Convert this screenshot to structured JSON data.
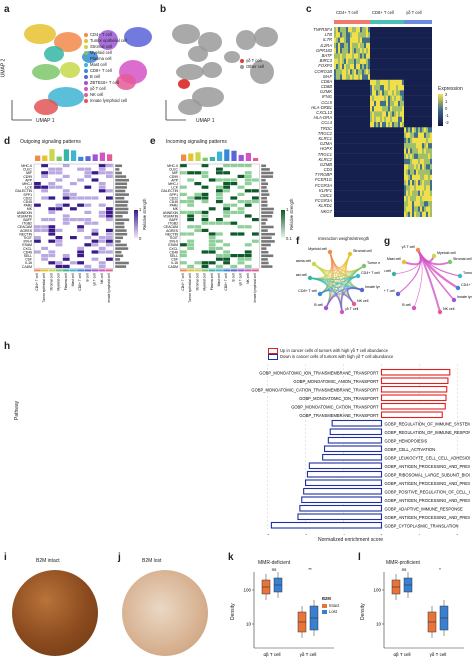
{
  "panels": {
    "a": {
      "label": "a",
      "xaxis": "UMAP 1",
      "yaxis": "UMAP 2",
      "legend": [
        {
          "name": "CD4+ T cell",
          "color": "#f28a4a"
        },
        {
          "name": "Tumor epithelial cell",
          "color": "#e8c22e"
        },
        {
          "name": "Stromal cell",
          "color": "#c7d84a"
        },
        {
          "name": "Myeloid cell",
          "color": "#7cc66a"
        },
        {
          "name": "Plasma cell",
          "color": "#35b6a4"
        },
        {
          "name": "Mast cell",
          "color": "#3db5d4"
        },
        {
          "name": "CD8+ T cell",
          "color": "#3a86d8"
        },
        {
          "name": "B cell",
          "color": "#5b63d8"
        },
        {
          "name": "ZBTB16+ T cell",
          "color": "#9a57d6"
        },
        {
          "name": "γδ T cell",
          "color": "#d454c4"
        },
        {
          "name": "NK cell",
          "color": "#e45b96"
        },
        {
          "name": "Innate lymphoid cell",
          "color": "#e25555"
        }
      ]
    },
    "b": {
      "label": "b",
      "xaxis": "UMAP 1",
      "legend": [
        {
          "name": "γδ T cell",
          "color": "#e03b3b"
        },
        {
          "name": "Other cell",
          "color": "#9a9a9a"
        }
      ]
    },
    "c": {
      "label": "c",
      "groups": [
        "CD4+ T cell",
        "CD8+ T cell",
        "γδ T cell"
      ],
      "group_colors": [
        "#f07a6a",
        "#4bbfb4",
        "#6a8be0"
      ],
      "genes": [
        "TNFRSF4",
        "LTB",
        "IL7R",
        "IL2RA",
        "GPR183",
        "BATF",
        "BIRC3",
        "FOXP3",
        "CORO1B",
        "MAF",
        "CD8A",
        "CD8B",
        "GZMK",
        "IFNG",
        "CCL5",
        "HLA-DRB1",
        "CXCL13",
        "HLA-DRA",
        "CCL4",
        "TRDC",
        "TRGC2",
        "KLRC1",
        "GZMA",
        "HOPX",
        "TRGC1",
        "KLRC2",
        "GZMB",
        "CD3",
        "TYROBP",
        "FCER1G",
        "FCGR3A",
        "KLRF1",
        "CMC1",
        "FCGR3A",
        "KLRD1",
        "NKG7"
      ],
      "colorbar_title": "Expression",
      "colorbar_ticks": [
        "2",
        "1",
        "0",
        "-1",
        "-2"
      ]
    },
    "d": {
      "label": "d",
      "title": "Outgoing signaling patterns",
      "rows": [
        "MHC-II",
        "CLEC",
        "MIF",
        "CD99",
        "APP",
        "MHC-I",
        "LCK",
        "GALECTIN",
        "SPP1",
        "CD22",
        "CD45",
        "PARs",
        "MK",
        "ANNEXIN",
        "VISFATIN",
        "BAFF",
        "ITGB2",
        "CEACAM",
        "AGRES",
        "NECTIN",
        "TIGIT",
        "IFN-II",
        "ESAM",
        "CXCL",
        "CD46",
        "SELL",
        "CSF",
        "IL16",
        "CADM"
      ],
      "cols": [
        "CD4+ T cell",
        "Tumor epithelial cell",
        "Stromal cell",
        "Myeloid cell",
        "Plasma cell",
        "Mast cell",
        "CD8+ T cell",
        "B cell",
        "γδ T cell",
        "NK cell",
        "Innate lymphoid cell"
      ],
      "colorbar_title": "Relative strength",
      "colorbar_ticks": [
        "1",
        "0"
      ]
    },
    "e": {
      "label": "e",
      "title": "Incoming signaling patterns",
      "rows": [
        "MHC-II",
        "CLEC",
        "MIF",
        "CD99",
        "APP",
        "MHC-I",
        "LCK",
        "GALECTIN",
        "SPP1",
        "CD22",
        "CD45",
        "PARs",
        "MK",
        "ANNEXIN",
        "VISFATIN",
        "BAFF",
        "ITGB2",
        "CEACAM",
        "AGRES",
        "NECTIN",
        "TIGIT",
        "IFN-II",
        "ESAM",
        "CXCL",
        "CD46",
        "SELL",
        "CSF",
        "IL16",
        "CADM"
      ],
      "cols": [
        "CD4+ T cell",
        "Tumor epithelial cell",
        "Stromal cell",
        "Myeloid cell",
        "Plasma cell",
        "Mast cell",
        "CD8+ T cell",
        "B cell",
        "γδ T cell",
        "NK cell",
        "Innate lymphoid cell"
      ],
      "colorbar_title": "Relative strength",
      "colorbar_ticks": [
        "1",
        "0.1"
      ]
    },
    "f": {
      "label": "f",
      "title": "Interaction weights/strength",
      "nodes": [
        "Myeloid cell",
        "Stromal cell",
        "Plasma cell",
        "Tumor epithelial cell",
        "Mast cell",
        "CD4+ T cell",
        "CD8+ T cell",
        "Innate lymphoid cell",
        "B cell",
        "γδ T cell",
        "NK cell"
      ]
    },
    "g": {
      "label": "g",
      "nodes": [
        "γδ T cell",
        "Mast cell",
        "Myeloid cell",
        "Stromal cell",
        "Plasma cell",
        "Tumor epithelial cell",
        "CD4+ T cell",
        "CD8+ T cell",
        "Innate lymphoid cell",
        "B cell",
        "NK cell"
      ]
    },
    "h": {
      "label": "h",
      "ylabel": "Pathway",
      "xlabel": "Normalized enrichment score",
      "legend": [
        {
          "name": "Up in cancer cells of tumors with high γδ T cell abundance",
          "color": "#e02020"
        },
        {
          "name": "Down in cancer cells of tumors with high γδ T cell abundance",
          "color": "#2030a0"
        }
      ],
      "xticks": [
        "-3",
        "-2",
        "-1",
        "0",
        "1",
        "2"
      ]
    },
    "i": {
      "label": "i",
      "title": "B2M intact"
    },
    "j": {
      "label": "j",
      "title": "B2M lost"
    },
    "k": {
      "label": "k",
      "title": "MMR-deficient",
      "ylabel": "Density",
      "legend_title": "B2M",
      "legend": [
        {
          "name": "Intact",
          "color": "#e8743a"
        },
        {
          "name": "Lost",
          "color": "#3a7fd0"
        }
      ],
      "sig": [
        "ns",
        "**"
      ],
      "yticks": [
        "100",
        "10"
      ],
      "xcats": [
        "αβ T cell",
        "γδ T cell"
      ]
    },
    "l": {
      "label": "l",
      "title": "MMR-proficient",
      "ylabel": "Density",
      "sig": [
        "ns",
        "*"
      ],
      "yticks": [
        "100",
        "10"
      ],
      "xcats": [
        "αβ T cell",
        "γδ T cell"
      ]
    }
  },
  "chart_data": [
    {
      "type": "bar",
      "title": "",
      "xlabel": "Normalized enrichment score",
      "ylabel": "Pathway",
      "xlim": [
        -3.2,
        2.2
      ],
      "categories": [
        "GOBP_MONOATOMIC_ION_TRANSMEMBRANE_TRANSPORT",
        "GOBP_MONOATOMIC_ANION_TRANSPORT",
        "GOBP_MONOATOMIC_CATION_TRANSMEMBRANE_TRANSPORT",
        "GOBP_MONOATOMIC_ION_TRANSPORT",
        "GOBP_MONOATOMIC_CATION_TRANSPORT",
        "GOBP_TRANSMEMBRANE_TRANSPORT",
        "GOBP_REGULATION_OF_IMMUNE_SYSTEM_PROCESS",
        "GOBP_REGULATION_OF_IMMUNE_RESPONSE",
        "GOBP_HEMOPOIESIS",
        "GOBP_CELL_ACTIVATION",
        "GOBP_LEUKOCYTE_CELL_CELL_ADHESION",
        "GOBP_ANTIGEN_PROCESSING_AND_PRESENTATION_OF_EXOGENOUS_PEPTIDE_ANTIGEN",
        "GOBP_RIBOSOMAL_LARGE_SUBUNIT_BIOGENESIS",
        "GOBP_ANTIGEN_PROCESSING_AND_PRESENTATION_OF_ENDOGENOUS_ANTIGEN",
        "GOBP_POSITIVE_REGULATION_OF_CELL_CELL_ADHESION",
        "GOBP_ANTIGEN_PROCESSING_AND_PRESENTATION_OF_ENDOGENOUS_PEPTIDE_ANTIGEN",
        "GOBP_ADAPTIVE_IMMUNE_RESPONSE",
        "GOBP_ANTIGEN_PROCESSING_AND_PRESENTATION_OF_PEPTIDE_ANTIGEN",
        "GOBP_CYTOPLASMIC_TRANSLATION"
      ],
      "values": [
        1.8,
        1.75,
        1.72,
        1.7,
        1.68,
        1.6,
        -1.3,
        -1.35,
        -1.4,
        -1.5,
        -1.55,
        -1.9,
        -1.95,
        -2.0,
        -2.05,
        -2.1,
        -2.15,
        -2.2,
        -2.9
      ],
      "series": [
        {
          "name": "Up in cancer cells of tumors with high γδ T cell abundance",
          "indices": [
            0,
            1,
            2,
            3,
            4,
            5
          ]
        },
        {
          "name": "Down in cancer cells of tumors with high γδ T cell abundance",
          "indices": [
            6,
            7,
            8,
            9,
            10,
            11,
            12,
            13,
            14,
            15,
            16,
            17,
            18
          ]
        }
      ]
    }
  ]
}
